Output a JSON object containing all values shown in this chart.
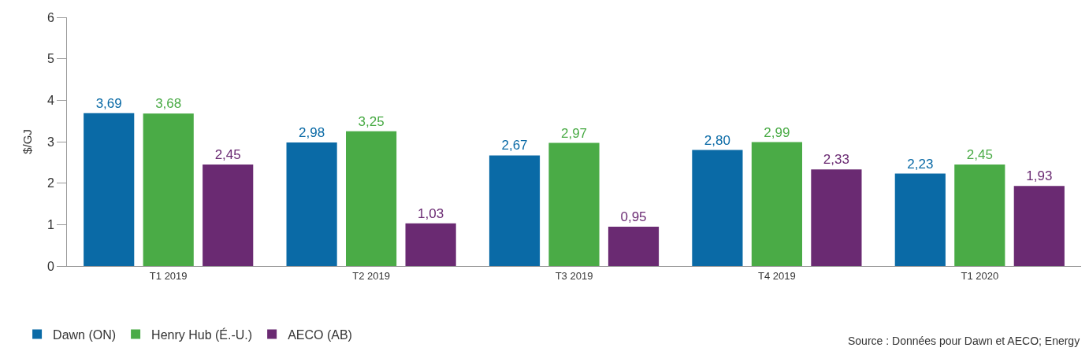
{
  "chart_data": {
    "type": "bar",
    "ylabel": "$/GJ",
    "categories": [
      "T1 2019",
      "T2 2019",
      "T3 2019",
      "T4 2019",
      "T1 2020"
    ],
    "series": [
      {
        "name": "Dawn (ON)",
        "color": "#0a6aa6",
        "values": [
          3.69,
          2.98,
          2.67,
          2.8,
          2.23
        ],
        "value_labels": [
          "3,69",
          "2,98",
          "2,67",
          "2,80",
          "2,23"
        ]
      },
      {
        "name": "Henry Hub (É.-U.)",
        "color": "#4aab46",
        "values": [
          3.68,
          3.25,
          2.97,
          2.99,
          2.45
        ],
        "value_labels": [
          "3,68",
          "3,25",
          "2,97",
          "2,99",
          "2,45"
        ]
      },
      {
        "name": "AECO (AB)",
        "color": "#6a2a72",
        "values": [
          2.45,
          1.03,
          0.95,
          2.33,
          1.93
        ],
        "value_labels": [
          "2,45",
          "1,03",
          "0,95",
          "2,33",
          "1,93"
        ]
      }
    ],
    "ylim": [
      0,
      6
    ],
    "yticks": [
      0,
      1,
      2,
      3,
      4,
      5,
      6
    ],
    "legend": "bottom left",
    "annotations": [
      "Source : Données pour Dawn et AECO; Energy"
    ]
  }
}
